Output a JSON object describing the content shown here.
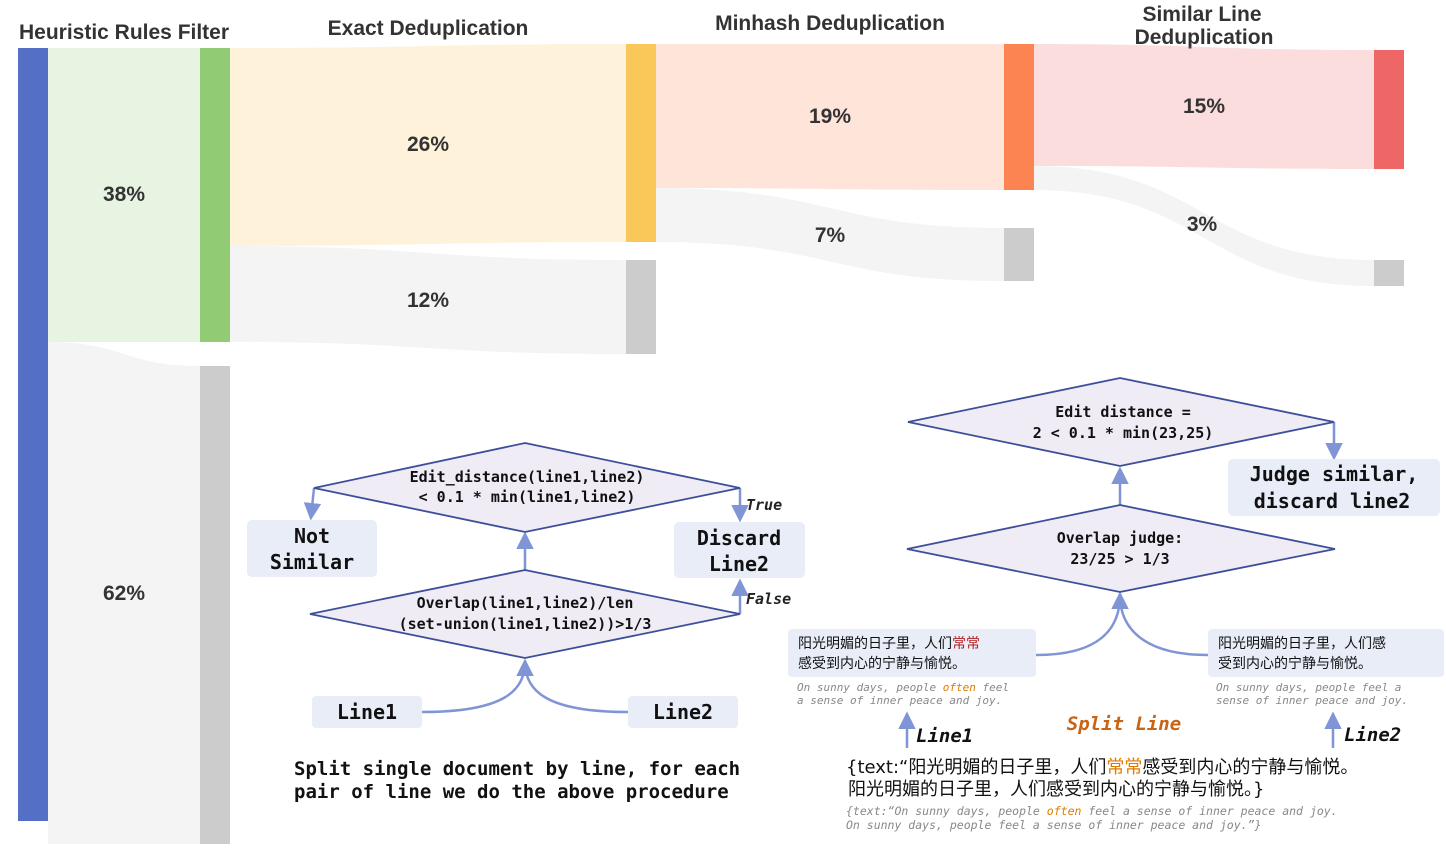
{
  "colors": {
    "stage1_bar": "#5470c6",
    "stage1_keep": "#91cc75",
    "stage2_keep": "#fac858",
    "stage3_keep": "#fc8452",
    "stage4_keep": "#ee6666",
    "removed": "#cccccc",
    "diamond_fill": "#f0ecf6",
    "diamond_stroke": "#3d4f9a",
    "arrow": "#7f95d6",
    "box_fill": "#e8edf8",
    "highlight_red": "#b22222",
    "highlight_orange": "#e07b00",
    "split_line": "#c86414"
  },
  "sankey": {
    "headers": {
      "heuristic": "Heuristic Rules Filter",
      "exact": "Exact Deduplication",
      "minhash": "Minhash Deduplication",
      "similar_line_1": "Similar Line",
      "similar_line_2": "Deduplication"
    },
    "labels": {
      "heuristic_keep": "38%",
      "heuristic_drop": "62%",
      "exact_keep": "26%",
      "exact_drop": "12%",
      "minhash_keep": "19%",
      "minhash_drop": "7%",
      "similar_keep": "15%",
      "similar_drop": "3%"
    }
  },
  "left_flow": {
    "diamond_top": {
      "line1": "Edit_distance(line1,line2)",
      "line2": "< 0.1 * min(line1,line2)"
    },
    "diamond_bottom": {
      "line1": "Overlap(line1,line2)/len",
      "line2": "(set-union(line1,line2))>1/3"
    },
    "not_similar_1": "Not",
    "not_similar_2": "Similar",
    "discard_1": "Discard",
    "discard_2": "Line2",
    "true_label": "True",
    "false_label": "False",
    "line1": "Line1",
    "line2": "Line2",
    "caption_1": "Split single document by line, for each",
    "caption_2": "pair of line we do the above procedure"
  },
  "right_flow": {
    "diamond_top": {
      "line1": "Edit distance =",
      "line2": "2 < 0.1 * min(23,25)"
    },
    "diamond_bottom": {
      "line1": "Overlap judge:",
      "line2": "23/25 > 1/3"
    },
    "judge_1": "Judge similar,",
    "judge_2": "discard line2",
    "box1": {
      "zh_line1_a": "阳光明媚的日子里，人们",
      "zh_line1_b": "常常",
      "zh_line2": "感受到内心的宁静与愉悦。",
      "en_line1_a": "On sunny days, people ",
      "en_line1_b": "often",
      "en_line1_c": " feel",
      "en_line2": "a sense of inner peace and joy."
    },
    "box2": {
      "zh_line1": "阳光明媚的日子里，人们感",
      "zh_line2": "受到内心的宁静与愉悦。",
      "en_line1": "On sunny days, people feel a",
      "en_line2": "sense of inner peace and joy."
    },
    "split_line": "Split Line",
    "line1": "Line1",
    "line2": "Line2",
    "doc": {
      "zh_line1_a": "{text:“阳光明媚的日子里，人们",
      "zh_line1_b": "常常",
      "zh_line1_c": "感受到内心的宁静与愉悦。",
      "zh_line2": "阳光明媚的日子里，人们感受到内心的宁静与愉悦。}",
      "en_line1_a": "{text:“On sunny days, people ",
      "en_line1_b": "often",
      "en_line1_c": " feel a sense of inner peace and joy.",
      "en_line2": "On sunny days, people feel a sense of inner peace and joy.”}"
    }
  }
}
